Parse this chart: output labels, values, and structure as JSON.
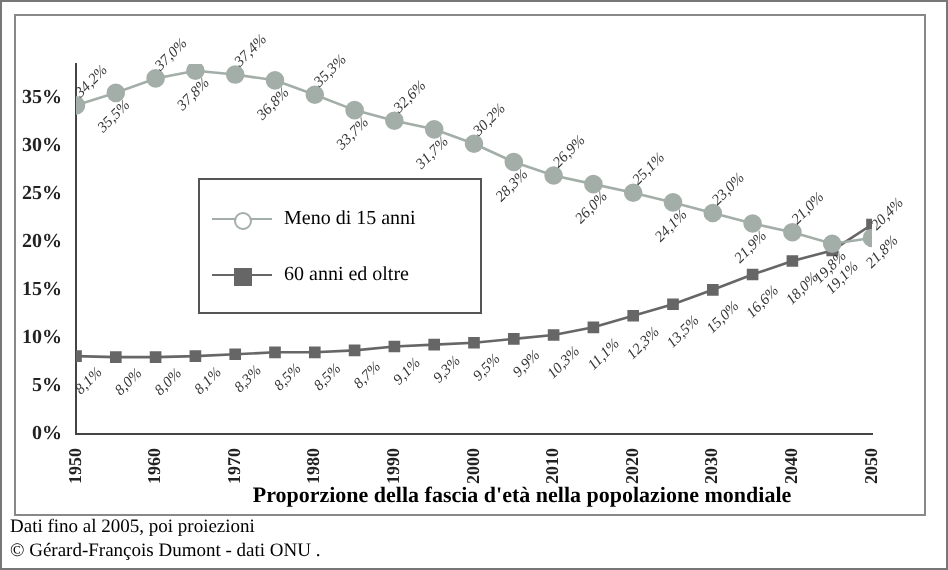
{
  "chart_data": {
    "type": "line",
    "xlabel": "Proporzione della fascia d'età nella popolazione mondiale",
    "annotations": [
      "Dati fino al 2005, poi proiezioni",
      "© Gérard-François Dumont - dati ONU ."
    ],
    "x": [
      1950,
      1955,
      1960,
      1965,
      1970,
      1975,
      1980,
      1985,
      1990,
      1995,
      2000,
      2005,
      2010,
      2015,
      2020,
      2025,
      2030,
      2035,
      2040,
      2045,
      2050
    ],
    "series": [
      {
        "name": "Meno di 15 anni",
        "color": "#a3aea8",
        "marker": "circle",
        "values": [
          34.2,
          35.5,
          37.0,
          37.8,
          37.4,
          36.8,
          35.3,
          33.7,
          32.6,
          31.7,
          30.2,
          28.3,
          26.9,
          26.0,
          25.1,
          24.1,
          23.0,
          21.9,
          21.0,
          19.8,
          20.4
        ],
        "value_labels": [
          "34,2%",
          "35,5%",
          "37,0%",
          "37,8%",
          "37,4%",
          "36,8%",
          "35,3%",
          "33,7%",
          "32,6%",
          "31,7%",
          "30,2%",
          "28,3%",
          "26,9%",
          "26,0%",
          "25,1%",
          "24,1%",
          "23,0%",
          "21,9%",
          "21,0%",
          "19,8%",
          "20,4%"
        ]
      },
      {
        "name": "60 anni ed oltre",
        "color": "#666666",
        "marker": "square",
        "values": [
          8.1,
          8.0,
          8.0,
          8.1,
          8.3,
          8.5,
          8.5,
          8.7,
          9.1,
          9.3,
          9.5,
          9.9,
          10.3,
          11.1,
          12.3,
          13.5,
          15.0,
          16.6,
          18.0,
          19.1,
          21.8
        ],
        "value_labels": [
          "8,1%",
          "8,0%",
          "8,0%",
          "8,1%",
          "8,3%",
          "8,5%",
          "8,5%",
          "8,7%",
          "9,1%",
          "9,3%",
          "9,5%",
          "9,9%",
          "10,3%",
          "11,1%",
          "12,3%",
          "13,5%",
          "15,0%",
          "16,6%",
          "18,0%",
          "19,1%",
          "21,8%"
        ]
      }
    ],
    "xlim": [
      1950,
      2050
    ],
    "xticks": [
      1950,
      1960,
      1970,
      1980,
      1990,
      2000,
      2010,
      2020,
      2030,
      2040,
      2050
    ],
    "ylim": [
      0,
      38.5
    ],
    "yticks": [
      {
        "value": 0,
        "label": "0%"
      },
      {
        "value": 5,
        "label": "5%"
      },
      {
        "value": 10,
        "label": "10%"
      },
      {
        "value": 15,
        "label": "15%"
      },
      {
        "value": 20,
        "label": "20%"
      },
      {
        "value": 25,
        "label": "25%"
      },
      {
        "value": 30,
        "label": "30%"
      },
      {
        "value": 35,
        "label": "35%"
      }
    ],
    "grid": false,
    "legend": "center left"
  }
}
